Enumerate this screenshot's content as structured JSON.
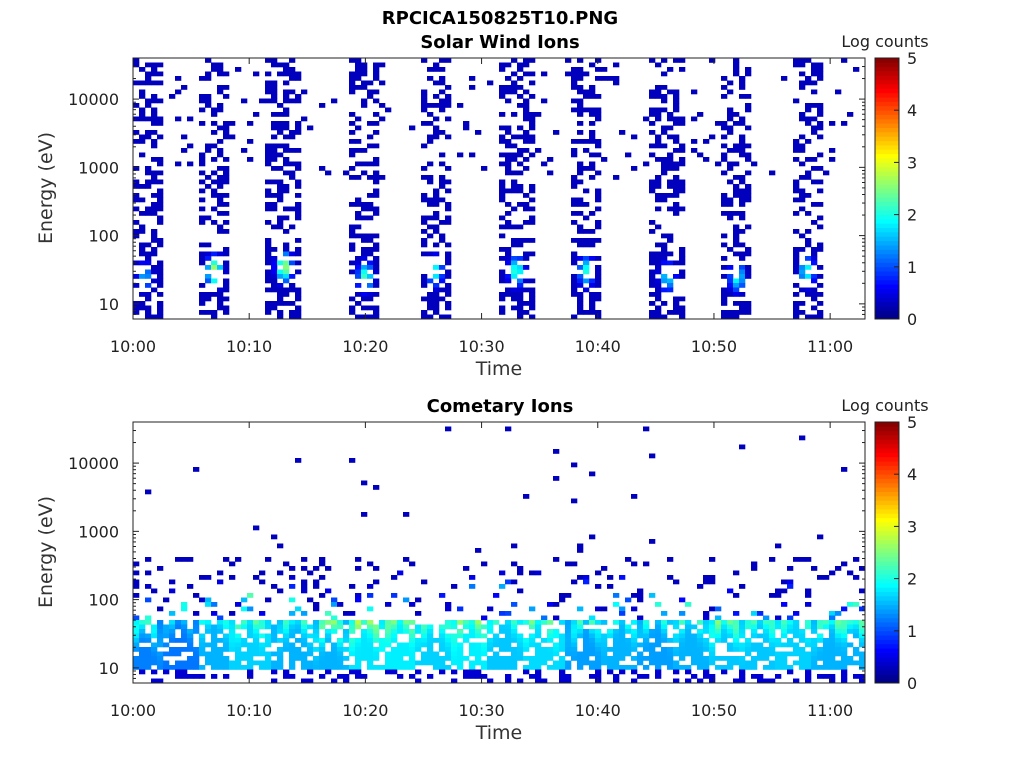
{
  "figure_title": "RPCICA150825T10.PNG",
  "chart_data": [
    {
      "type": "heatmap",
      "title": "Solar Wind Ions",
      "xlabel": "Time",
      "ylabel": "Energy (eV)",
      "x_ticks": [
        "10:00",
        "10:10",
        "10:20",
        "10:30",
        "10:40",
        "10:50",
        "11:00"
      ],
      "xlim": [
        "10:00",
        "11:03"
      ],
      "y_scale": "log",
      "y_ticks": [
        "10",
        "100",
        "1000",
        "10000"
      ],
      "ylim": [
        6,
        40000
      ],
      "colorbar": {
        "label": "Log counts",
        "range": [
          0,
          5
        ],
        "ticks": [
          "0",
          "1",
          "2",
          "3",
          "4",
          "5"
        ]
      },
      "pattern": "periodic bursts about every 6.5 minutes; low energy cores near 20-40 eV at 2-3 log counts, sparse counts up to ~30000 eV",
      "bursts": [
        {
          "center_time": "10:01",
          "peak_energy_ev": 25,
          "peak_log_counts": 1.5
        },
        {
          "center_time": "10:07",
          "peak_energy_ev": 30,
          "peak_log_counts": 2.8
        },
        {
          "center_time": "10:13",
          "peak_energy_ev": 35,
          "peak_log_counts": 2.7
        },
        {
          "center_time": "10:20",
          "peak_energy_ev": 25,
          "peak_log_counts": 2.2
        },
        {
          "center_time": "10:26",
          "peak_energy_ev": 30,
          "peak_log_counts": 2.0
        },
        {
          "center_time": "10:33",
          "peak_energy_ev": 30,
          "peak_log_counts": 2.2
        },
        {
          "center_time": "10:39",
          "peak_energy_ev": 30,
          "peak_log_counts": 2.0
        },
        {
          "center_time": "10:46",
          "peak_energy_ev": 25,
          "peak_log_counts": 1.8
        },
        {
          "center_time": "10:52",
          "peak_energy_ev": 25,
          "peak_log_counts": 2.0
        },
        {
          "center_time": "10:58",
          "peak_energy_ev": 30,
          "peak_log_counts": 2.0
        }
      ]
    },
    {
      "type": "heatmap",
      "title": "Cometary Ions",
      "xlabel": "Time",
      "ylabel": "Energy (eV)",
      "x_ticks": [
        "10:00",
        "10:10",
        "10:20",
        "10:30",
        "10:40",
        "10:50",
        "11:00"
      ],
      "xlim": [
        "10:00",
        "11:03"
      ],
      "y_scale": "log",
      "y_ticks": [
        "10",
        "100",
        "1000",
        "10000"
      ],
      "ylim": [
        6,
        40000
      ],
      "colorbar": {
        "label": "Log counts",
        "range": [
          0,
          5
        ],
        "ticks": [
          "0",
          "1",
          "2",
          "3",
          "4",
          "5"
        ]
      },
      "pattern": "near continuous band between 10 and 50 eV at 2-3.5 log counts, dispersive upward arcs to ~100-300 eV, sparse counts up to ~25000 eV",
      "bursts": [
        {
          "center_time": "10:01",
          "peak_energy_ev": 20,
          "peak_log_counts": 2.5
        },
        {
          "center_time": "10:04",
          "peak_energy_ev": 30,
          "peak_log_counts": 2.4
        },
        {
          "center_time": "10:07",
          "peak_energy_ev": 35,
          "peak_log_counts": 3.0
        },
        {
          "center_time": "10:10",
          "peak_energy_ev": 30,
          "peak_log_counts": 3.3
        },
        {
          "center_time": "10:14",
          "peak_energy_ev": 30,
          "peak_log_counts": 3.0
        },
        {
          "center_time": "10:17",
          "peak_energy_ev": 20,
          "peak_log_counts": 3.0
        },
        {
          "center_time": "10:20",
          "peak_energy_ev": 25,
          "peak_log_counts": 3.5
        },
        {
          "center_time": "10:23",
          "peak_energy_ev": 30,
          "peak_log_counts": 3.6
        },
        {
          "center_time": "10:26",
          "peak_energy_ev": 30,
          "peak_log_counts": 3.3
        },
        {
          "center_time": "10:29",
          "peak_energy_ev": 30,
          "peak_log_counts": 3.6
        },
        {
          "center_time": "10:32",
          "peak_energy_ev": 35,
          "peak_log_counts": 3.2
        },
        {
          "center_time": "10:35",
          "peak_energy_ev": 30,
          "peak_log_counts": 3.4
        },
        {
          "center_time": "10:39",
          "peak_energy_ev": 25,
          "peak_log_counts": 2.8
        },
        {
          "center_time": "10:42",
          "peak_energy_ev": 30,
          "peak_log_counts": 3.0
        },
        {
          "center_time": "10:45",
          "peak_energy_ev": 30,
          "peak_log_counts": 2.8
        },
        {
          "center_time": "10:48",
          "peak_energy_ev": 30,
          "peak_log_counts": 3.0
        },
        {
          "center_time": "10:51",
          "peak_energy_ev": 25,
          "peak_log_counts": 3.2
        },
        {
          "center_time": "10:54",
          "peak_energy_ev": 30,
          "peak_log_counts": 3.2
        },
        {
          "center_time": "10:57",
          "peak_energy_ev": 35,
          "peak_log_counts": 3.3
        },
        {
          "center_time": "11:00",
          "peak_energy_ev": 25,
          "peak_log_counts": 3.0
        },
        {
          "center_time": "11:02",
          "peak_energy_ev": 25,
          "peak_log_counts": 3.0
        }
      ]
    }
  ]
}
